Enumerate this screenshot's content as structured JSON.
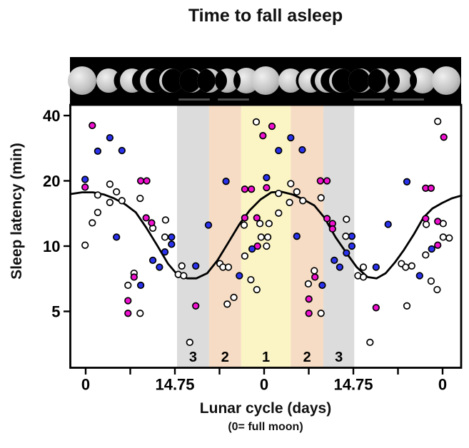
{
  "title": "Time to fall asleep",
  "y_axis": {
    "label": "Sleep latency (min)",
    "ticks": [
      "40",
      "20",
      "10",
      "5"
    ],
    "tick_values": [
      40,
      20,
      10,
      5
    ],
    "scale": "log2"
  },
  "x_axis": {
    "label": "Lunar cycle (days)",
    "sublabel": "(0= full moon)",
    "major_ticks": [
      {
        "day": 0,
        "label": "0"
      },
      {
        "day": 14.75,
        "label": "14.75"
      },
      {
        "day": 29.5,
        "label": "0"
      },
      {
        "day": 44.25,
        "label": "14.75"
      },
      {
        "day": 59,
        "label": "0"
      }
    ],
    "minor_tick_days": [
      7.375,
      22.125,
      36.875,
      51.625
    ],
    "span_days": [
      -2.5,
      62.1
    ]
  },
  "moon_phase_bands": [
    {
      "label": "3",
      "day_start": 15.1,
      "day_end": 20.4,
      "color": "#dcdcdc"
    },
    {
      "label": "2",
      "day_start": 20.4,
      "day_end": 25.7,
      "color": "#f6dcc4"
    },
    {
      "label": "1",
      "day_start": 25.7,
      "day_end": 33.9,
      "color": "#fbf4c4"
    },
    {
      "label": "2",
      "day_start": 33.9,
      "day_end": 39.3,
      "color": "#f6dcc4"
    },
    {
      "label": "3",
      "day_start": 39.3,
      "day_end": 44.4,
      "color": "#dcdcdc"
    }
  ],
  "moon_strip": {
    "background": "#000000",
    "phases": [
      {
        "d": -0.6,
        "phase": "full",
        "size": 40
      },
      {
        "d": 3.8,
        "phase": "gibbous-left",
        "size": 34
      },
      {
        "d": 7.7,
        "phase": "half-left",
        "size": 34
      },
      {
        "d": 11.0,
        "phase": "crescent-left",
        "size": 34
      },
      {
        "d": 14.2,
        "phase": "thin-left",
        "size": 34
      },
      {
        "d": 17.5,
        "phase": "thin-right",
        "size": 34
      },
      {
        "d": 20.4,
        "phase": "crescent-right",
        "size": 34
      },
      {
        "d": 23.4,
        "phase": "half-right",
        "size": 34
      },
      {
        "d": 26.6,
        "phase": "gibbous-right",
        "size": 36
      },
      {
        "d": 29.7,
        "phase": "full",
        "size": 40
      },
      {
        "d": 33.9,
        "phase": "gibbous-left",
        "size": 34
      },
      {
        "d": 37.2,
        "phase": "half-left",
        "size": 34
      },
      {
        "d": 39.9,
        "phase": "crescent-left",
        "size": 34
      },
      {
        "d": 42.2,
        "phase": "thin-left",
        "size": 34
      },
      {
        "d": 45.4,
        "phase": "thin-right",
        "size": 34
      },
      {
        "d": 48.6,
        "phase": "crescent-right",
        "size": 34
      },
      {
        "d": 51.9,
        "phase": "half-right",
        "size": 34
      },
      {
        "d": 55.7,
        "phase": "gibbous-right",
        "size": 36
      },
      {
        "d": 59.6,
        "phase": "full",
        "size": 40
      }
    ]
  },
  "chart_data": {
    "type": "scatter",
    "title": "Time to fall asleep",
    "xlabel": "Lunar cycle (days)",
    "ylabel": "Sleep latency (min)",
    "y_scale": "log2",
    "ylim": [
      2.8,
      45
    ],
    "x_unit": "days across two lunar cycles (0 = full moon)",
    "grid": false,
    "legend": "none",
    "series": [
      {
        "name": "open-circles",
        "color": "#ffffff",
        "points": [
          [
            4.0,
            19.3
          ],
          [
            2.0,
            17.2
          ],
          [
            5.1,
            17.8
          ],
          [
            4.0,
            15.9
          ],
          [
            6.0,
            16.2
          ],
          [
            2.0,
            14.3
          ],
          [
            1.1,
            12.8
          ],
          [
            -0.1,
            10.1
          ],
          [
            9.0,
            16.6
          ],
          [
            13.2,
            13.2
          ],
          [
            11.1,
            12.1
          ],
          [
            13.1,
            11.0
          ],
          [
            8.0,
            7.5
          ],
          [
            7.0,
            6.6
          ],
          [
            9.0,
            4.9
          ],
          [
            17.2,
            3.6
          ],
          [
            15.3,
            7.4
          ],
          [
            16.2,
            7.3
          ],
          [
            15.9,
            8.1
          ],
          [
            22.2,
            8.3
          ],
          [
            22.7,
            8.0
          ],
          [
            23.6,
            8.0
          ],
          [
            23.4,
            5.4
          ],
          [
            24.5,
            5.8
          ],
          [
            26.2,
            12.5
          ],
          [
            26.3,
            9.0
          ],
          [
            27.3,
            7.0
          ],
          [
            28.3,
            6.3
          ],
          [
            28.2,
            37.4
          ],
          [
            28.8,
            12.7
          ],
          [
            30.3,
            12.7
          ],
          [
            29.0,
            11.0
          ],
          [
            30.1,
            11.0
          ],
          [
            29.9,
            10.0
          ],
          [
            31.9,
            17.5
          ],
          [
            31.9,
            14.2
          ],
          [
            33.7,
            15.9
          ],
          [
            33.9,
            19.4
          ],
          [
            34.9,
            17.8
          ],
          [
            35.9,
            16.2
          ],
          [
            38.9,
            16.7
          ],
          [
            36.8,
            6.7
          ],
          [
            37.8,
            7.7
          ],
          [
            38.9,
            4.9
          ],
          [
            43.1,
            13.3
          ],
          [
            43.0,
            11.1
          ],
          [
            45.0,
            7.3
          ],
          [
            45.9,
            7.2
          ],
          [
            45.9,
            8.0
          ],
          [
            47.0,
            3.6
          ],
          [
            52.2,
            8.3
          ],
          [
            52.9,
            8.0
          ],
          [
            53.9,
            8.1
          ],
          [
            53.1,
            5.3
          ],
          [
            56.2,
            9.1
          ],
          [
            56.3,
            12.6
          ],
          [
            57.1,
            6.9
          ],
          [
            58.1,
            6.3
          ],
          [
            58.2,
            37.6
          ],
          [
            59.1,
            12.7
          ],
          [
            59.1,
            11.0
          ],
          [
            60.1,
            10.9
          ]
        ]
      },
      {
        "name": "blue-circles",
        "color": "#2a32ee",
        "points": [
          [
            4.0,
            31.6
          ],
          [
            2.0,
            27.4
          ],
          [
            6.0,
            27.6
          ],
          [
            -0.1,
            20.3
          ],
          [
            5.1,
            11.0
          ],
          [
            11.1,
            8.6
          ],
          [
            12.2,
            8.0
          ],
          [
            9.1,
            6.6
          ],
          [
            14.2,
            11.0
          ],
          [
            14.2,
            10.2
          ],
          [
            13.1,
            9.4
          ],
          [
            18.2,
            8.1
          ],
          [
            20.3,
            12.5
          ],
          [
            23.2,
            19.9
          ],
          [
            25.4,
            7.3
          ],
          [
            27.5,
            9.7
          ],
          [
            29.9,
            20.7
          ],
          [
            31.9,
            27.6
          ],
          [
            33.9,
            31.6
          ],
          [
            35.8,
            27.8
          ],
          [
            34.9,
            11.1
          ],
          [
            39.1,
            6.6
          ],
          [
            41.1,
            8.6
          ],
          [
            42.0,
            8.0
          ],
          [
            44.0,
            11.1
          ],
          [
            44.0,
            10.0
          ],
          [
            43.1,
            9.3
          ],
          [
            48.0,
            8.0
          ],
          [
            50.0,
            12.6
          ],
          [
            53.1,
            19.8
          ],
          [
            55.2,
            7.3
          ],
          [
            57.2,
            9.7
          ]
        ]
      },
      {
        "name": "magenta-circles",
        "color": "#ef10d0",
        "points": [
          [
            1.1,
            36.0
          ],
          [
            -0.1,
            18.7
          ],
          [
            9.1,
            20.0
          ],
          [
            10.1,
            20.0
          ],
          [
            10.0,
            13.5
          ],
          [
            10.9,
            12.8
          ],
          [
            8.0,
            7.2
          ],
          [
            7.0,
            5.6
          ],
          [
            7.0,
            4.9
          ],
          [
            18.2,
            5.3
          ],
          [
            26.3,
            18.3
          ],
          [
            27.4,
            18.3
          ],
          [
            29.9,
            18.6
          ],
          [
            26.3,
            13.5
          ],
          [
            28.3,
            13.5
          ],
          [
            28.4,
            10.0
          ],
          [
            29.3,
            32.3
          ],
          [
            30.8,
            35.7
          ],
          [
            36.9,
            5.7
          ],
          [
            36.9,
            4.9
          ],
          [
            37.9,
            7.2
          ],
          [
            38.8,
            20.0
          ],
          [
            39.9,
            20.0
          ],
          [
            39.9,
            13.4
          ],
          [
            40.8,
            12.7
          ],
          [
            40.8,
            12.0
          ],
          [
            48.0,
            5.2
          ],
          [
            56.2,
            18.5
          ],
          [
            57.1,
            18.5
          ],
          [
            56.2,
            13.4
          ],
          [
            58.2,
            13.0
          ],
          [
            58.2,
            10.1
          ],
          [
            59.2,
            31.8
          ]
        ]
      }
    ],
    "fit_curve": {
      "color": "#000000",
      "points": [
        [
          -2.4,
          17.4
        ],
        [
          -0.6,
          17.7
        ],
        [
          1.2,
          17.7
        ],
        [
          3.0,
          17.3
        ],
        [
          4.7,
          16.6
        ],
        [
          6.5,
          15.6
        ],
        [
          8.3,
          14.3
        ],
        [
          10.0,
          12.2
        ],
        [
          11.8,
          10.1
        ],
        [
          13.6,
          8.3
        ],
        [
          15.3,
          7.3
        ],
        [
          16.8,
          7.1
        ],
        [
          18.3,
          7.1
        ],
        [
          20.1,
          7.5
        ],
        [
          21.8,
          8.6
        ],
        [
          23.6,
          10.4
        ],
        [
          25.4,
          12.6
        ],
        [
          27.1,
          14.6
        ],
        [
          28.9,
          16.4
        ],
        [
          30.7,
          17.7
        ],
        [
          32.4,
          17.8
        ],
        [
          34.2,
          17.3
        ],
        [
          36.0,
          16.4
        ],
        [
          37.8,
          15.4
        ],
        [
          39.5,
          13.5
        ],
        [
          41.3,
          11.0
        ],
        [
          43.1,
          9.3
        ],
        [
          44.8,
          8.0
        ],
        [
          46.6,
          7.2
        ],
        [
          48.1,
          7.1
        ],
        [
          49.6,
          7.5
        ],
        [
          51.1,
          8.4
        ],
        [
          52.6,
          9.6
        ],
        [
          54.3,
          11.4
        ],
        [
          55.8,
          13.5
        ],
        [
          57.3,
          14.9
        ],
        [
          58.9,
          15.8
        ],
        [
          60.5,
          16.6
        ],
        [
          62.1,
          17.1
        ]
      ]
    }
  }
}
